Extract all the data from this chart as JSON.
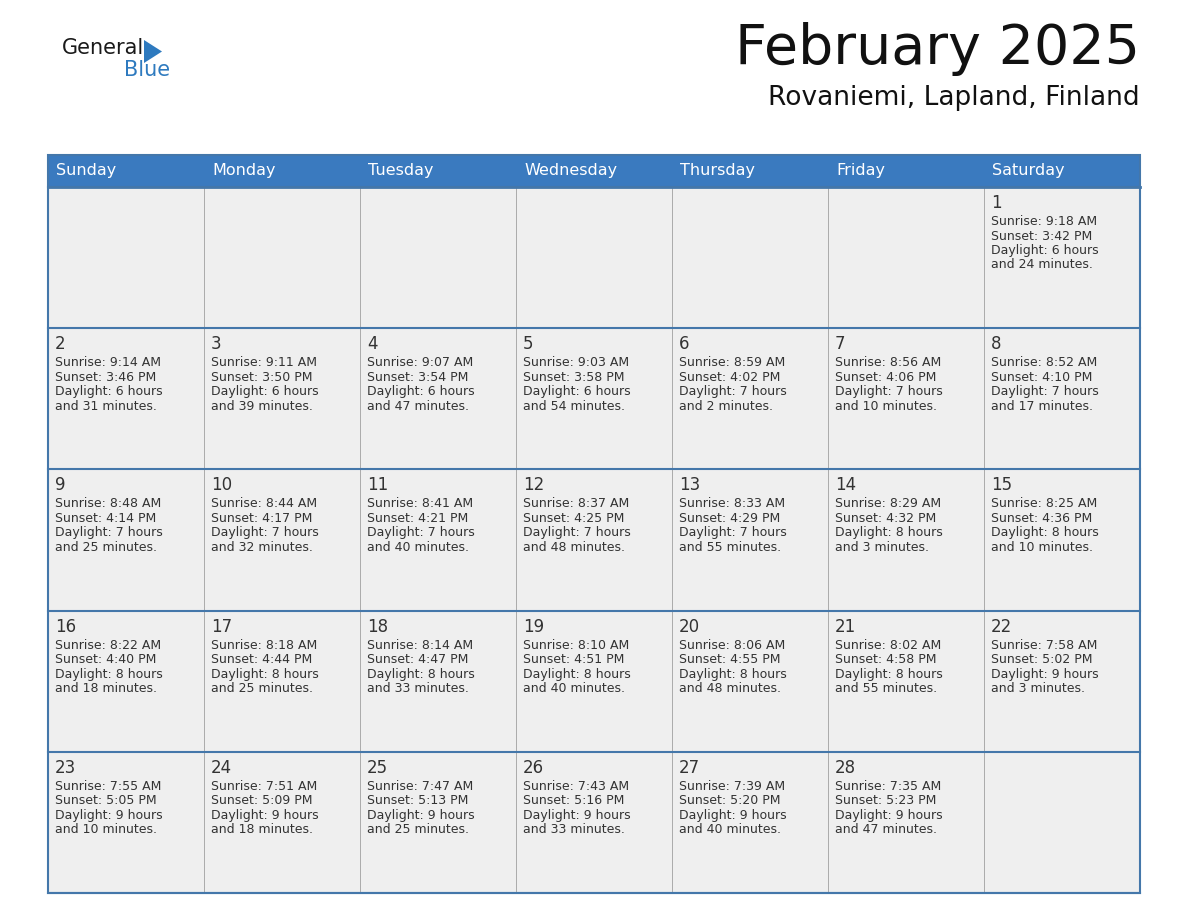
{
  "title": "February 2025",
  "subtitle": "Rovaniemi, Lapland, Finland",
  "days_of_week": [
    "Sunday",
    "Monday",
    "Tuesday",
    "Wednesday",
    "Thursday",
    "Friday",
    "Saturday"
  ],
  "header_bg": "#3a7abf",
  "header_text": "#ffffff",
  "cell_bg_light": "#efefef",
  "cell_bg_white": "#ffffff",
  "border_color": "#4477aa",
  "row_border_color": "#4477aa",
  "day_number_color": "#333333",
  "text_color": "#333333",
  "logo_general_color": "#1a1a1a",
  "logo_blue_color": "#2e7abf",
  "title_color": "#111111",
  "subtitle_color": "#111111",
  "calendar_data": [
    [
      null,
      null,
      null,
      null,
      null,
      null,
      {
        "day": 1,
        "sunrise": "9:18 AM",
        "sunset": "3:42 PM",
        "daylight": "6 hours and 24 minutes."
      }
    ],
    [
      {
        "day": 2,
        "sunrise": "9:14 AM",
        "sunset": "3:46 PM",
        "daylight": "6 hours and 31 minutes."
      },
      {
        "day": 3,
        "sunrise": "9:11 AM",
        "sunset": "3:50 PM",
        "daylight": "6 hours and 39 minutes."
      },
      {
        "day": 4,
        "sunrise": "9:07 AM",
        "sunset": "3:54 PM",
        "daylight": "6 hours and 47 minutes."
      },
      {
        "day": 5,
        "sunrise": "9:03 AM",
        "sunset": "3:58 PM",
        "daylight": "6 hours and 54 minutes."
      },
      {
        "day": 6,
        "sunrise": "8:59 AM",
        "sunset": "4:02 PM",
        "daylight": "7 hours and 2 minutes."
      },
      {
        "day": 7,
        "sunrise": "8:56 AM",
        "sunset": "4:06 PM",
        "daylight": "7 hours and 10 minutes."
      },
      {
        "day": 8,
        "sunrise": "8:52 AM",
        "sunset": "4:10 PM",
        "daylight": "7 hours and 17 minutes."
      }
    ],
    [
      {
        "day": 9,
        "sunrise": "8:48 AM",
        "sunset": "4:14 PM",
        "daylight": "7 hours and 25 minutes."
      },
      {
        "day": 10,
        "sunrise": "8:44 AM",
        "sunset": "4:17 PM",
        "daylight": "7 hours and 32 minutes."
      },
      {
        "day": 11,
        "sunrise": "8:41 AM",
        "sunset": "4:21 PM",
        "daylight": "7 hours and 40 minutes."
      },
      {
        "day": 12,
        "sunrise": "8:37 AM",
        "sunset": "4:25 PM",
        "daylight": "7 hours and 48 minutes."
      },
      {
        "day": 13,
        "sunrise": "8:33 AM",
        "sunset": "4:29 PM",
        "daylight": "7 hours and 55 minutes."
      },
      {
        "day": 14,
        "sunrise": "8:29 AM",
        "sunset": "4:32 PM",
        "daylight": "8 hours and 3 minutes."
      },
      {
        "day": 15,
        "sunrise": "8:25 AM",
        "sunset": "4:36 PM",
        "daylight": "8 hours and 10 minutes."
      }
    ],
    [
      {
        "day": 16,
        "sunrise": "8:22 AM",
        "sunset": "4:40 PM",
        "daylight": "8 hours and 18 minutes."
      },
      {
        "day": 17,
        "sunrise": "8:18 AM",
        "sunset": "4:44 PM",
        "daylight": "8 hours and 25 minutes."
      },
      {
        "day": 18,
        "sunrise": "8:14 AM",
        "sunset": "4:47 PM",
        "daylight": "8 hours and 33 minutes."
      },
      {
        "day": 19,
        "sunrise": "8:10 AM",
        "sunset": "4:51 PM",
        "daylight": "8 hours and 40 minutes."
      },
      {
        "day": 20,
        "sunrise": "8:06 AM",
        "sunset": "4:55 PM",
        "daylight": "8 hours and 48 minutes."
      },
      {
        "day": 21,
        "sunrise": "8:02 AM",
        "sunset": "4:58 PM",
        "daylight": "8 hours and 55 minutes."
      },
      {
        "day": 22,
        "sunrise": "7:58 AM",
        "sunset": "5:02 PM",
        "daylight": "9 hours and 3 minutes."
      }
    ],
    [
      {
        "day": 23,
        "sunrise": "7:55 AM",
        "sunset": "5:05 PM",
        "daylight": "9 hours and 10 minutes."
      },
      {
        "day": 24,
        "sunrise": "7:51 AM",
        "sunset": "5:09 PM",
        "daylight": "9 hours and 18 minutes."
      },
      {
        "day": 25,
        "sunrise": "7:47 AM",
        "sunset": "5:13 PM",
        "daylight": "9 hours and 25 minutes."
      },
      {
        "day": 26,
        "sunrise": "7:43 AM",
        "sunset": "5:16 PM",
        "daylight": "9 hours and 33 minutes."
      },
      {
        "day": 27,
        "sunrise": "7:39 AM",
        "sunset": "5:20 PM",
        "daylight": "9 hours and 40 minutes."
      },
      {
        "day": 28,
        "sunrise": "7:35 AM",
        "sunset": "5:23 PM",
        "daylight": "9 hours and 47 minutes."
      },
      null
    ]
  ]
}
